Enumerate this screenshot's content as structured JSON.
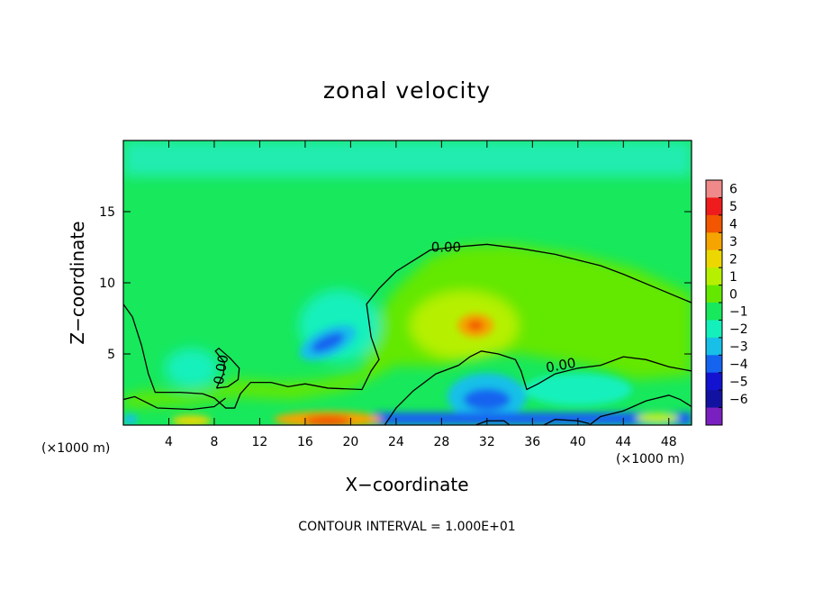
{
  "chart_data": {
    "type": "heatmap",
    "title": "zonal velocity",
    "xlabel": "X−coordinate",
    "ylabel": "Z−coordinate",
    "x_unit": "(×1000 m)",
    "note": "CONTOUR INTERVAL = 1.000E+01",
    "xlim": [
      0,
      50
    ],
    "ylim": [
      0,
      20
    ],
    "x_ticks": [
      "4",
      "8",
      "12",
      "16",
      "20",
      "24",
      "28",
      "32",
      "36",
      "40",
      "44",
      "48"
    ],
    "y_ticks": [
      "5",
      "10",
      "15"
    ],
    "colorbar": {
      "range": [
        -6,
        6
      ],
      "labels": [
        "6",
        "5",
        "4",
        "3",
        "2",
        "1",
        "0",
        "−1",
        "−2",
        "−3",
        "−4",
        "−5",
        "−6"
      ],
      "colors": [
        "#f08a8a",
        "#ee1c1c",
        "#f25600",
        "#f5a400",
        "#ecd800",
        "#b6f000",
        "#64e800",
        "#17e85c",
        "#14f0bc",
        "#18c0e8",
        "#1464f0",
        "#1212d0",
        "#1212a0",
        "#7a20c0"
      ]
    },
    "contour_labels": [
      "0.00",
      "0.00",
      "0.00"
    ],
    "features": [
      {
        "name": "background",
        "value": -1.0
      },
      {
        "name": "central-warm-dome",
        "x": 30,
        "z": 7,
        "value": 1.2
      },
      {
        "name": "positive-core",
        "x": 31,
        "z": 7,
        "value": 3.0
      },
      {
        "name": "negative-core",
        "x": 18,
        "z": 5.8,
        "value": -3.5
      },
      {
        "name": "surface-jet",
        "x": 18,
        "z": 0.5,
        "value": 4.0
      },
      {
        "name": "low-level-negative",
        "x": 32,
        "z": 2,
        "value": -4.0
      }
    ]
  }
}
